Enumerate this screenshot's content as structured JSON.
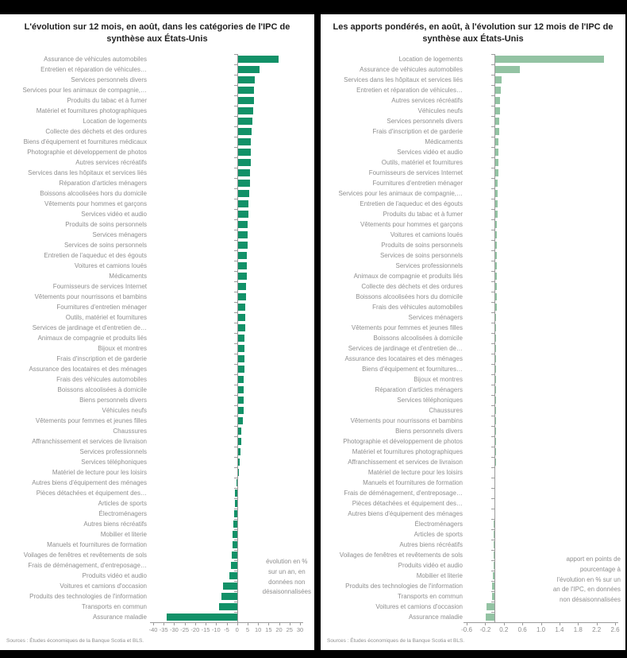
{
  "left_chart": {
    "title": "L'évolution sur 12 mois, en août, dans les catégories de l'IPC de synthèse aux États-Unis",
    "annotation": "évolution en %\nsur un an, en\ndonnées non\ndésaisonnalisées",
    "source": "Sources : Études économiques de la Banque Scotia et BLS.",
    "bar_color": "#129168",
    "chart_data": {
      "type": "bar",
      "orientation": "horizontal",
      "xlim": [
        -40,
        30
      ],
      "xtick_labels": [
        "-40",
        "-35",
        "-30",
        "-25",
        "-20",
        "-15",
        "-10",
        "-5",
        "0",
        "5",
        "10",
        "15",
        "20",
        "25",
        "30"
      ],
      "grid": false,
      "categories": [
        "Assurance de véhicules automobiles",
        "Entretien et réparation de véhicules…",
        "Services personnels divers",
        "Services pour les animaux de compagnie,…",
        "Produits du tabac et à fumer",
        "Matériel et fournitures photographiques",
        "Location de logements",
        "Collecte des déchets et des ordures",
        "Biens d'équipement et fournitures médicaux",
        "Photographie et développement de photos",
        "Autres services récréatifs",
        "Services dans les hôpitaux et services liés",
        "Réparation d'articles ménagers",
        "Boissons alcoolisées hors du domicile",
        "Vêtements pour hommes et garçons",
        "Services vidéo et audio",
        "Produits de soins personnels",
        "Services ménagers",
        "Services de soins personnels",
        "Entretien de l'aqueduc et des égouts",
        "Voitures et camions loués",
        "Médicaments",
        "Fournisseurs de services Internet",
        "Vêtements pour nourrissons et bambins",
        "Fournitures d'entretien ménager",
        "Outils, matériel et fournitures",
        "Services de jardinage et d'entretien de…",
        "Animaux de compagnie et produits liés",
        "Bijoux et montres",
        "Frais d'inscription et de garderie",
        "Assurance des locataires et des ménages",
        "Frais des véhicules automobiles",
        "Boissons alcoolisées à domicile",
        "Biens personnels divers",
        "Véhicules neufs",
        "Vêtements pour femmes et jeunes filles",
        "Chaussures",
        "Affranchissement et services de livraison",
        "Services professionnels",
        "Services téléphoniques",
        "Matériel de lecture pour les loisirs",
        "Autres biens d'équipement des ménages",
        "Pièces détachées et équipement des…",
        "Articles de sports",
        "Électroménagers",
        "Autres biens récréatifs",
        "Mobilier et literie",
        "Manuels et fournitures de formation",
        "Voilages de fenêtres et revêtements de sols",
        "Frais de déménagement, d'entreposage…",
        "Produits vidéo et audio",
        "Voitures et camions d'occasion",
        "Produits des technologies de l'information",
        "Transports en commun",
        "Assurance maladie"
      ],
      "values": [
        19.4,
        10.2,
        8.0,
        7.7,
        7.5,
        7.2,
        7.1,
        6.7,
        6.3,
        6.2,
        6.0,
        5.8,
        5.6,
        5.3,
        5.1,
        5.0,
        4.8,
        4.7,
        4.5,
        4.4,
        4.2,
        4.1,
        4.0,
        3.8,
        3.7,
        3.5,
        3.4,
        3.3,
        3.2,
        3.1,
        3.0,
        2.9,
        2.8,
        2.8,
        2.6,
        2.3,
        1.7,
        1.5,
        1.2,
        0.8,
        0.3,
        -0.3,
        -1.0,
        -1.2,
        -1.5,
        -1.8,
        -2.0,
        -2.3,
        -2.6,
        -3.0,
        -3.8,
        -6.8,
        -7.6,
        -8.5,
        -33.6
      ]
    }
  },
  "right_chart": {
    "title": "Les apports pondérés, en août, à l'évolution sur 12 mois de l'IPC de synthèse aux États-Unis",
    "annotation": "apport en points de\npourcentage à\nl'évolution en % sur un\nan de l'IPC, en données\nnon désaisonnalisées",
    "source": "Sources : Études économiques de la Banque Scotia et BLS.",
    "bar_color": "#93C3A3",
    "chart_data": {
      "type": "bar",
      "orientation": "horizontal",
      "xlim": [
        -0.6,
        2.6
      ],
      "xtick_labels": [
        "-0.6",
        "-0.2",
        "0.2",
        "0.6",
        "1.0",
        "1.4",
        "1.8",
        "2.2",
        "2.6"
      ],
      "grid": false,
      "categories": [
        "Location de logements",
        "Assurance de véhicules automobiles",
        "Services dans les hôpitaux et services liés",
        "Entretien et réparation de véhicules…",
        "Autres services récréatifs",
        "Véhicules neufs",
        "Services personnels divers",
        "Frais d'inscription et de garderie",
        "Médicaments",
        "Services vidéo et audio",
        "Outils, matériel et fournitures",
        "Fournisseurs de services Internet",
        "Fournitures d'entretien ménager",
        "Services pour les animaux de compagnie,…",
        "Entretien de l'aqueduc et des égouts",
        "Produits du tabac et à fumer",
        "Vêtements pour hommes et garçons",
        "Voitures et camions loués",
        "Produits de soins personnels",
        "Services de soins personnels",
        "Services professionnels",
        "Animaux de compagnie et produits liés",
        "Collecte des déchets et des ordures",
        "Boissons alcoolisées hors du domicile",
        "Frais des véhicules automobiles",
        "Services ménagers",
        "Vêtements pour femmes et jeunes filles",
        "Boissons alcoolisées à domicile",
        "Services de jardinage et d'entretien de…",
        "Assurance des locataires et des ménages",
        "Biens d'équipement et fournitures…",
        "Bijoux et montres",
        "Réparation d'articles ménagers",
        "Services téléphoniques",
        "Chaussures",
        "Vêtements pour nourrissons et bambins",
        "Biens personnels divers",
        "Photographie et développement de photos",
        "Matériel et fournitures photographiques",
        "Affranchissement et services de livraison",
        "Matériel de lecture pour les loisirs",
        "Manuels et fournitures de formation",
        "Frais de déménagement, d'entreposage…",
        "Pièces détachées et équipement des…",
        "Autres biens d'équipement des ménages",
        "Électroménagers",
        "Articles de sports",
        "Autres biens récréatifs",
        "Voilages de fenêtres et revêtements de sols",
        "Produits vidéo et audio",
        "Mobilier et literie",
        "Produits des technologies de l'information",
        "Transports en commun",
        "Voitures et camions d'occasion",
        "Assurance maladie"
      ],
      "values": [
        2.34,
        0.53,
        0.13,
        0.12,
        0.1,
        0.1,
        0.09,
        0.08,
        0.07,
        0.07,
        0.06,
        0.06,
        0.05,
        0.05,
        0.05,
        0.05,
        0.04,
        0.04,
        0.04,
        0.04,
        0.03,
        0.03,
        0.03,
        0.03,
        0.03,
        0.02,
        0.02,
        0.02,
        0.02,
        0.02,
        0.02,
        0.01,
        0.01,
        0.01,
        0.01,
        0.01,
        0.01,
        0.01,
        0.01,
        0.01,
        0.0,
        0.0,
        0.0,
        0.0,
        0.0,
        -0.01,
        -0.01,
        -0.01,
        -0.01,
        -0.01,
        -0.03,
        -0.05,
        -0.05,
        -0.17,
        -0.19
      ]
    }
  }
}
